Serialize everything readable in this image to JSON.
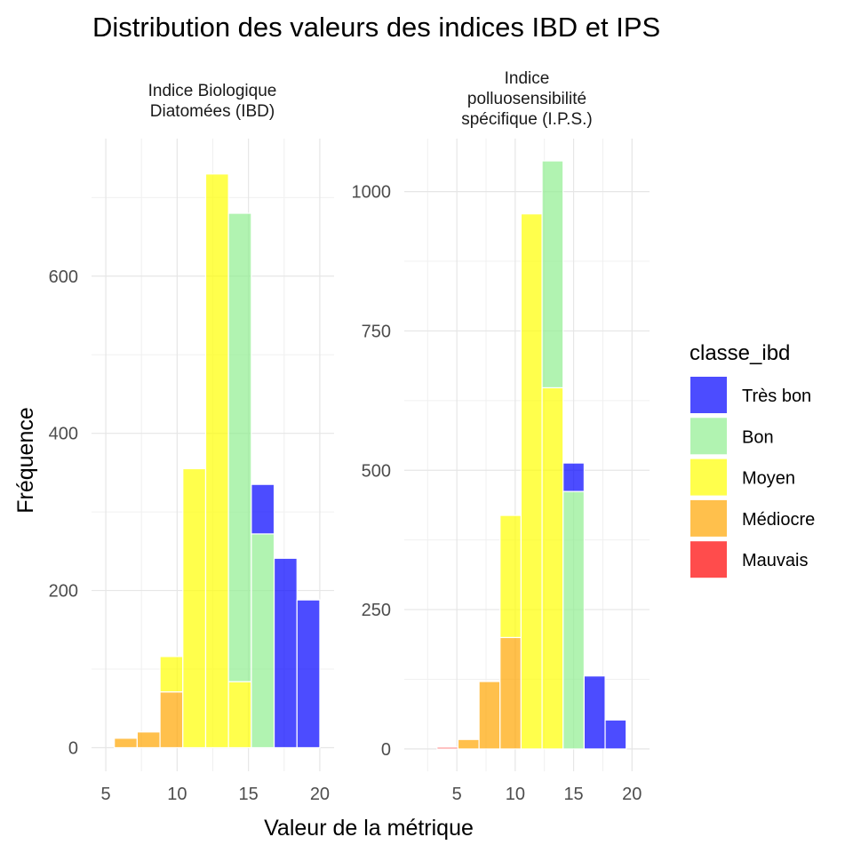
{
  "chart_data": {
    "type": "bar",
    "title": "Distribution des valeurs des indices IBD et IPS",
    "xlabel": "Valeur de la métrique",
    "ylabel": "Fréquence",
    "legend": {
      "title": "classe_ibd",
      "position": "right",
      "entries": [
        {
          "name": "Très bon",
          "color": "#0000ff"
        },
        {
          "name": "Bon",
          "color": "#90ee90"
        },
        {
          "name": "Moyen",
          "color": "#ffff00"
        },
        {
          "name": "Médiocre",
          "color": "#ffa500"
        },
        {
          "name": "Mauvais",
          "color": "#ff0000"
        }
      ]
    },
    "bar_opacity": 0.7,
    "grid": true,
    "panels": [
      {
        "title_lines": [
          "Indice Biologique",
          "Diatomées (IBD)"
        ],
        "xlim": [
          4,
          21
        ],
        "ylim": [
          -30,
          775
        ],
        "x_ticks": [
          5,
          10,
          15,
          20
        ],
        "y_ticks": [
          0,
          200,
          400,
          600
        ],
        "bins": [
          {
            "x0": 5.6,
            "x1": 7.2,
            "segments": [
              {
                "cls": "Médiocre",
                "value": 12
              }
            ]
          },
          {
            "x0": 7.2,
            "x1": 8.8,
            "segments": [
              {
                "cls": "Médiocre",
                "value": 20
              }
            ]
          },
          {
            "x0": 8.8,
            "x1": 10.4,
            "segments": [
              {
                "cls": "Médiocre",
                "value": 71
              },
              {
                "cls": "Moyen",
                "value": 45
              }
            ]
          },
          {
            "x0": 10.4,
            "x1": 12.0,
            "segments": [
              {
                "cls": "Moyen",
                "value": 355
              }
            ]
          },
          {
            "x0": 12.0,
            "x1": 13.6,
            "segments": [
              {
                "cls": "Moyen",
                "value": 730
              }
            ]
          },
          {
            "x0": 13.6,
            "x1": 15.2,
            "segments": [
              {
                "cls": "Moyen",
                "value": 84
              },
              {
                "cls": "Bon",
                "value": 596
              }
            ]
          },
          {
            "x0": 15.2,
            "x1": 16.8,
            "segments": [
              {
                "cls": "Bon",
                "value": 272
              },
              {
                "cls": "Très bon",
                "value": 63
              }
            ]
          },
          {
            "x0": 16.8,
            "x1": 18.4,
            "segments": [
              {
                "cls": "Très bon",
                "value": 241
              }
            ]
          },
          {
            "x0": 18.4,
            "x1": 20.0,
            "segments": [
              {
                "cls": "Très bon",
                "value": 188
              }
            ]
          }
        ]
      },
      {
        "title_lines": [
          "Indice",
          "polluosensibilité",
          "spécifique (I.P.S.)"
        ],
        "xlim": [
          0.5,
          21.5
        ],
        "ylim": [
          -40,
          1095
        ],
        "x_ticks": [
          5,
          10,
          15,
          20
        ],
        "y_ticks": [
          0,
          250,
          500,
          750,
          1000
        ],
        "bins": [
          {
            "x0": 3.3,
            "x1": 5.1,
            "segments": [
              {
                "cls": "Mauvais",
                "value": 3
              }
            ]
          },
          {
            "x0": 5.1,
            "x1": 6.9,
            "segments": [
              {
                "cls": "Médiocre",
                "value": 17
              }
            ]
          },
          {
            "x0": 6.9,
            "x1": 8.7,
            "segments": [
              {
                "cls": "Médiocre",
                "value": 121
              }
            ]
          },
          {
            "x0": 8.7,
            "x1": 10.5,
            "segments": [
              {
                "cls": "Médiocre",
                "value": 200
              },
              {
                "cls": "Moyen",
                "value": 219
              }
            ]
          },
          {
            "x0": 10.5,
            "x1": 12.3,
            "segments": [
              {
                "cls": "Moyen",
                "value": 960
              }
            ]
          },
          {
            "x0": 12.3,
            "x1": 14.1,
            "segments": [
              {
                "cls": "Moyen",
                "value": 648
              },
              {
                "cls": "Bon",
                "value": 407
              }
            ]
          },
          {
            "x0": 14.1,
            "x1": 15.9,
            "segments": [
              {
                "cls": "Bon",
                "value": 462
              },
              {
                "cls": "Très bon",
                "value": 51
              }
            ]
          },
          {
            "x0": 15.9,
            "x1": 17.7,
            "segments": [
              {
                "cls": "Très bon",
                "value": 131
              }
            ]
          },
          {
            "x0": 17.7,
            "x1": 19.5,
            "segments": [
              {
                "cls": "Très bon",
                "value": 52
              }
            ]
          }
        ]
      }
    ]
  }
}
